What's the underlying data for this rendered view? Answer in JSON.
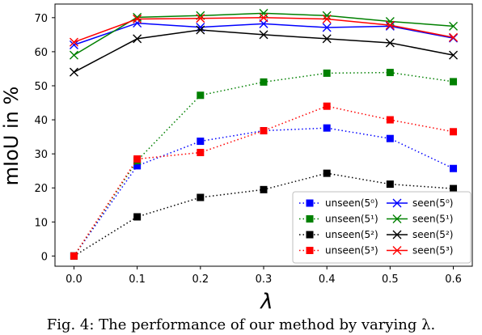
{
  "caption": "Fig. 4: The performance of our method by varying λ.",
  "chart_data": {
    "type": "line",
    "xlabel": "λ",
    "ylabel": "mIoU in %",
    "x": [
      0.0,
      0.1,
      0.2,
      0.3,
      0.4,
      0.5,
      0.6
    ],
    "xticks": [
      "0.0",
      "0.1",
      "0.2",
      "0.3",
      "0.4",
      "0.5",
      "0.6"
    ],
    "yticks": [
      0,
      10,
      20,
      30,
      40,
      50,
      60,
      70
    ],
    "xlim": [
      -0.03,
      0.63
    ],
    "ylim": [
      -3,
      74
    ],
    "grid": false,
    "legend_position": "lower-right",
    "series": [
      {
        "name": "unseen(5⁰)",
        "marker": "square",
        "style": "dotted",
        "color": "#0000ff",
        "values": [
          0,
          26.5,
          33.7,
          36.8,
          37.6,
          34.5,
          25.7
        ]
      },
      {
        "name": "seen(5⁰)",
        "marker": "x",
        "style": "solid",
        "color": "#0000ff",
        "values": [
          62,
          68.4,
          67.2,
          68.2,
          67.1,
          67.5,
          64
        ]
      },
      {
        "name": "unseen(5¹)",
        "marker": "square",
        "style": "dotted",
        "color": "#008000",
        "values": [
          0,
          28,
          47.2,
          51.1,
          53.7,
          53.9,
          51.2
        ]
      },
      {
        "name": "seen(5¹)",
        "marker": "x",
        "style": "solid",
        "color": "#008000",
        "values": [
          59,
          70.1,
          70.6,
          71.3,
          70.6,
          68.9,
          67.5
        ]
      },
      {
        "name": "unseen(5²)",
        "marker": "square",
        "style": "dotted",
        "color": "#000000",
        "values": [
          0,
          11.5,
          17.2,
          19.5,
          24.3,
          21.1,
          19.8
        ]
      },
      {
        "name": "seen(5²)",
        "marker": "x",
        "style": "solid",
        "color": "#000000",
        "values": [
          54,
          63.8,
          66.4,
          65,
          63.8,
          62.6,
          59
        ]
      },
      {
        "name": "unseen(5³)",
        "marker": "square",
        "style": "dotted",
        "color": "#ff0000",
        "values": [
          0,
          28.5,
          30.4,
          36.8,
          44,
          40,
          36.5
        ]
      },
      {
        "name": "seen(5³)",
        "marker": "x",
        "style": "solid",
        "color": "#ff0000",
        "values": [
          62.8,
          69.6,
          69.8,
          70,
          69.6,
          67.8,
          64.2
        ]
      }
    ]
  }
}
